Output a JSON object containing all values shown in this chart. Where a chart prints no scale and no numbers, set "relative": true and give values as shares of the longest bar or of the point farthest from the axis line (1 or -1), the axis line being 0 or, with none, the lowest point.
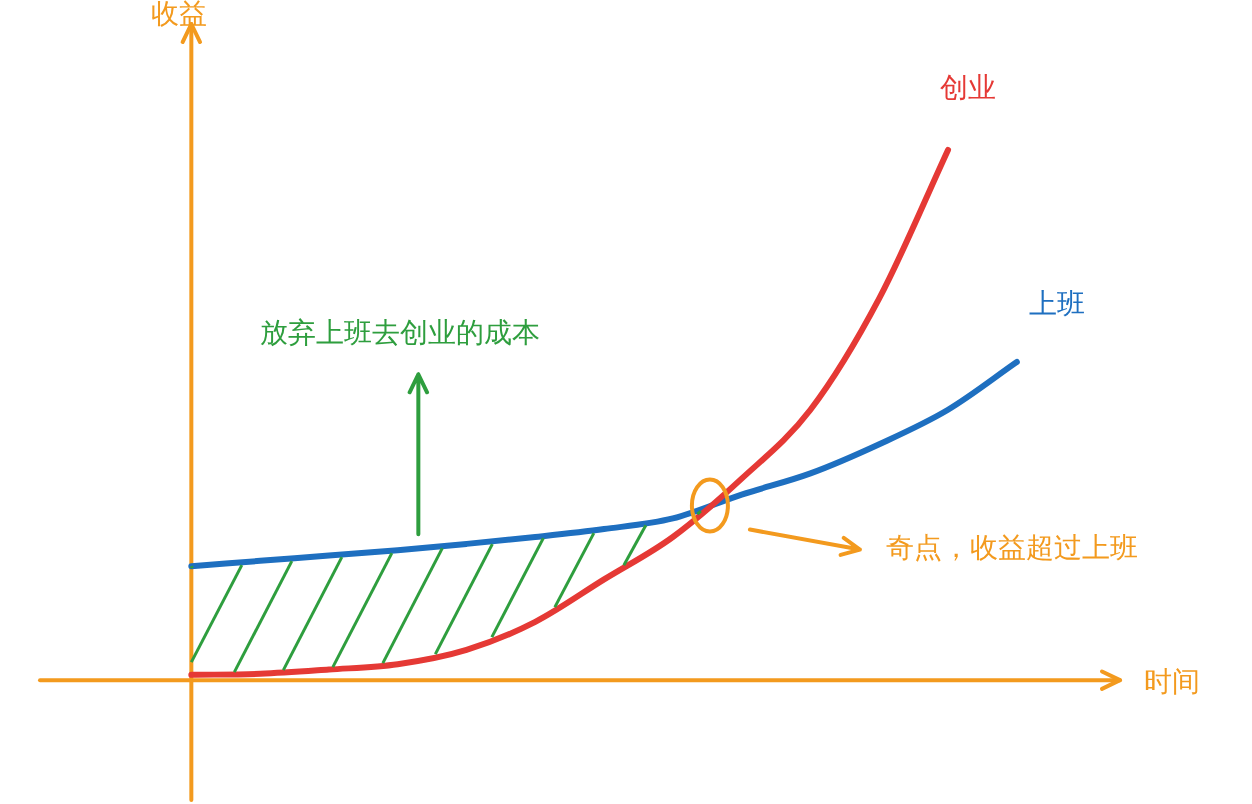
{
  "chart_data": {
    "type": "line",
    "relative": true,
    "xlabel": "时间",
    "ylabel": "收益",
    "categories": [
      null,
      null,
      null,
      null,
      null,
      null,
      null,
      null,
      null,
      null,
      null,
      null,
      null
    ],
    "series": [
      {
        "name": "创业",
        "color": "#e53935",
        "values": [
          0.01,
          0.012,
          0.02,
          0.03,
          0.057,
          0.11,
          0.19,
          0.27,
          0.38,
          0.51,
          0.72,
          1.0,
          null
        ]
      },
      {
        "name": "上班",
        "color": "#1e6fc0",
        "values": [
          0.215,
          0.225,
          0.235,
          0.245,
          0.257,
          0.27,
          0.285,
          0.305,
          0.35,
          0.39,
          0.445,
          0.51,
          0.6
        ]
      }
    ],
    "annotations": [
      "放弃上班去创业的成本",
      "奇点，收益超过上班"
    ],
    "legend": false,
    "marker": "none",
    "line_style": "solid"
  }
}
